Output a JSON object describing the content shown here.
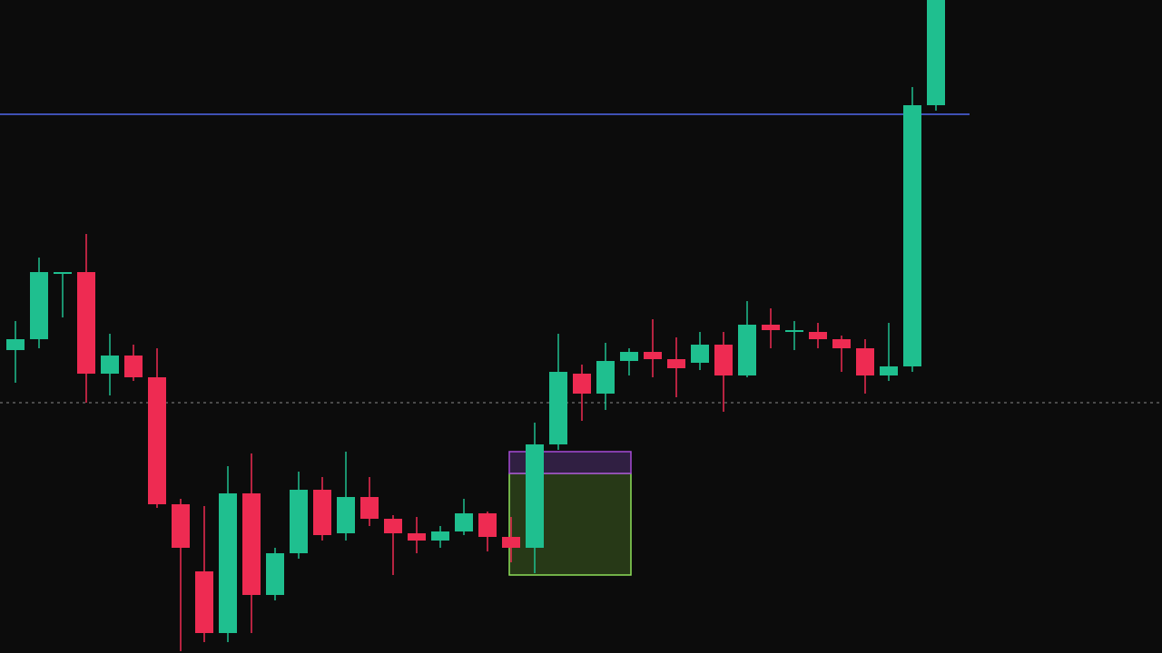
{
  "colors": {
    "background": "#0c0c0c",
    "up": "#1fbf8f",
    "down": "#ee2b52",
    "resistance_line": "#3f51b5",
    "dotted_line": "#8a8a8a",
    "zone_fill": "#5b8f2e",
    "zone_stroke": "#8ee05a",
    "zone_top_fill": "#3a2450",
    "zone_top_stroke": "#a64bd6"
  },
  "chart_data": {
    "type": "candlestick",
    "price_range": [
      0,
      720
    ],
    "candles": [
      {
        "o": 334,
        "h": 366,
        "l": 298,
        "c": 346
      },
      {
        "o": 346,
        "h": 436,
        "l": 336,
        "c": 420
      },
      {
        "o": 420,
        "h": 420,
        "l": 370,
        "c": 420
      },
      {
        "o": 420,
        "h": 462,
        "l": 276,
        "c": 308
      },
      {
        "o": 308,
        "h": 352,
        "l": 284,
        "c": 328
      },
      {
        "o": 328,
        "h": 340,
        "l": 300,
        "c": 304
      },
      {
        "o": 304,
        "h": 336,
        "l": 160,
        "c": 164
      },
      {
        "o": 164,
        "h": 170,
        "l": 2,
        "c": 116
      },
      {
        "o": 90,
        "h": 162,
        "l": 12,
        "c": 22
      },
      {
        "o": 22,
        "h": 206,
        "l": 12,
        "c": 176
      },
      {
        "o": 176,
        "h": 220,
        "l": 22,
        "c": 64
      },
      {
        "o": 64,
        "h": 116,
        "l": 58,
        "c": 110
      },
      {
        "o": 110,
        "h": 200,
        "l": 104,
        "c": 180
      },
      {
        "o": 180,
        "h": 194,
        "l": 124,
        "c": 130
      },
      {
        "o": 132,
        "h": 222,
        "l": 124,
        "c": 172
      },
      {
        "o": 172,
        "h": 194,
        "l": 140,
        "c": 148
      },
      {
        "o": 148,
        "h": 152,
        "l": 86,
        "c": 132
      },
      {
        "o": 132,
        "h": 150,
        "l": 110,
        "c": 124
      },
      {
        "o": 124,
        "h": 140,
        "l": 116,
        "c": 134
      },
      {
        "o": 134,
        "h": 170,
        "l": 130,
        "c": 154
      },
      {
        "o": 154,
        "h": 156,
        "l": 112,
        "c": 128
      },
      {
        "o": 128,
        "h": 150,
        "l": 100,
        "c": 116
      },
      {
        "o": 116,
        "h": 254,
        "l": 88,
        "c": 230
      },
      {
        "o": 230,
        "h": 352,
        "l": 224,
        "c": 310
      },
      {
        "o": 308,
        "h": 318,
        "l": 256,
        "c": 286
      },
      {
        "o": 286,
        "h": 342,
        "l": 268,
        "c": 322
      },
      {
        "o": 322,
        "h": 336,
        "l": 306,
        "c": 332
      },
      {
        "o": 332,
        "h": 368,
        "l": 304,
        "c": 324
      },
      {
        "o": 324,
        "h": 348,
        "l": 282,
        "c": 314
      },
      {
        "o": 320,
        "h": 354,
        "l": 312,
        "c": 340
      },
      {
        "o": 340,
        "h": 354,
        "l": 266,
        "c": 306
      },
      {
        "o": 306,
        "h": 388,
        "l": 304,
        "c": 362
      },
      {
        "o": 362,
        "h": 380,
        "l": 336,
        "c": 356
      },
      {
        "o": 356,
        "h": 366,
        "l": 334,
        "c": 356
      },
      {
        "o": 354,
        "h": 364,
        "l": 336,
        "c": 346
      },
      {
        "o": 346,
        "h": 350,
        "l": 310,
        "c": 336
      },
      {
        "o": 336,
        "h": 346,
        "l": 286,
        "c": 306
      },
      {
        "o": 306,
        "h": 364,
        "l": 300,
        "c": 316
      },
      {
        "o": 316,
        "h": 624,
        "l": 310,
        "c": 604
      },
      {
        "o": 604,
        "h": 730,
        "l": 598,
        "c": 730
      }
    ],
    "horizontal_lines": [
      {
        "style": "solid",
        "price": 594
      },
      {
        "style": "dotted",
        "price": 276
      }
    ],
    "zones": [
      {
        "from_index": 22,
        "to_index": 26,
        "low": 86,
        "high": 198,
        "variant": "demand"
      },
      {
        "from_index": 22,
        "to_index": 26,
        "low": 198,
        "high": 222,
        "variant": "header"
      }
    ],
    "grid": false
  }
}
